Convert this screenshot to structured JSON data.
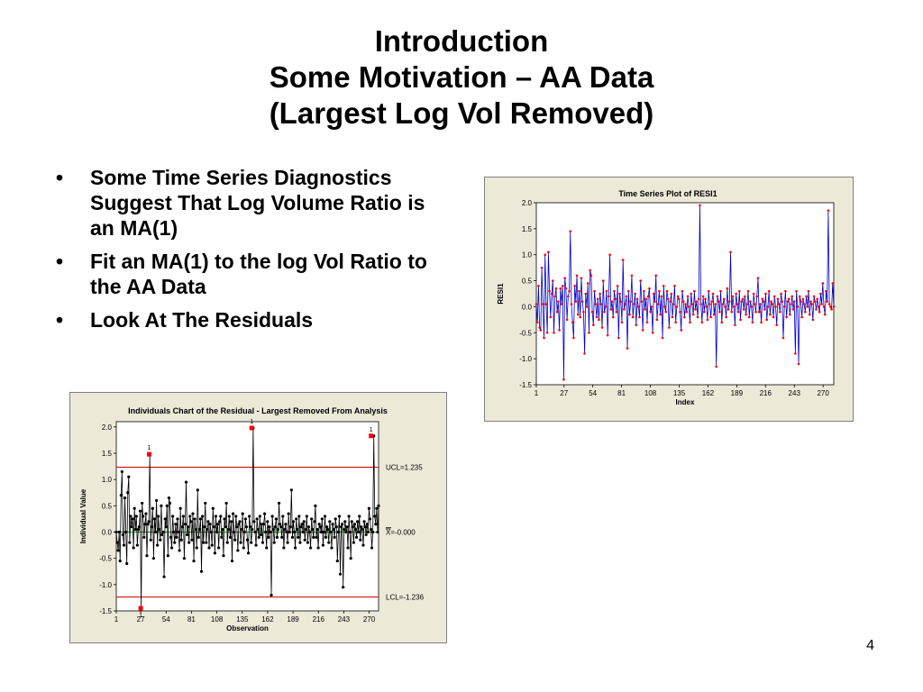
{
  "slide": {
    "title_lines": [
      "Introduction",
      "Some Motivation – AA Data",
      "(Largest Log Vol Removed)"
    ],
    "bullets": [
      "Some Time Series Diagnostics Suggest That Log Volume Ratio is an MA(1)",
      "Fit an MA(1) to the log Vol Ratio to the AA Data",
      "Look At The Residuals"
    ],
    "bullet_symbol": "•",
    "page_number": "4"
  },
  "chart_data": [
    {
      "type": "line",
      "title": "Time Series Plot of RESI1",
      "xlabel": "Index",
      "ylabel": "RESI1",
      "x_ticks": [
        "1",
        "27",
        "54",
        "81",
        "108",
        "135",
        "162",
        "189",
        "216",
        "243",
        "270"
      ],
      "y_ticks": [
        "2.0",
        "1.5",
        "1.0",
        "0.5",
        "0.0",
        "-0.5",
        "-1.0",
        "-1.5"
      ],
      "xlim": [
        1,
        280
      ],
      "ylim": [
        -1.5,
        2.0
      ],
      "line_color": "#0000cc",
      "marker_color": "#ff0000",
      "note": "",
      "series": [
        {
          "values": [
            0.05,
            -0.3,
            0.4,
            -0.4,
            -0.45,
            0.75,
            0.05,
            -0.6,
            1.0,
            0.05,
            -0.5,
            1.05,
            0.3,
            -0.2,
            0.25,
            0.5,
            -0.5,
            0.2,
            0.35,
            -0.1,
            0.1,
            -0.45,
            0.35,
            0.05,
            0.4,
            -1.4,
            0.55,
            0.35,
            -0.25,
            0.2,
            0.3,
            1.45,
            0.05,
            -0.3,
            -0.6,
            0.4,
            0.1,
            0.6,
            -0.15,
            0.3,
            -0.2,
            0.55,
            0.1,
            -0.1,
            -0.9,
            0.25,
            0.0,
            0.45,
            -0.5,
            0.7,
            0.6,
            -0.1,
            -0.35,
            0.3,
            0.05,
            -0.2,
            0.15,
            -0.25,
            0.25,
            0.05,
            -0.4,
            0.5,
            -0.1,
            0.0,
            0.3,
            -0.55,
            0.2,
            1.0,
            -0.05,
            0.1,
            -0.2,
            0.3,
            0.15,
            -0.1,
            0.4,
            -0.6,
            0.25,
            0.1,
            -0.3,
            0.9,
            -0.05,
            0.05,
            0.2,
            -0.8,
            0.3,
            -0.15,
            0.1,
            0.6,
            -0.2,
            0.05,
            0.25,
            -0.35,
            0.15,
            0.0,
            -0.2,
            0.5,
            0.1,
            -0.45,
            0.3,
            -0.05,
            0.15,
            -0.3,
            0.2,
            0.35,
            -0.1,
            0.0,
            -0.5,
            0.25,
            0.1,
            0.6,
            -0.25,
            0.05,
            0.3,
            -0.15,
            0.2,
            -0.6,
            0.4,
            0.0,
            -0.1,
            0.3,
            0.15,
            -0.4,
            0.1,
            0.25,
            -0.2,
            0.05,
            0.4,
            -0.3,
            0.0,
            0.2,
            0.15,
            -0.1,
            -0.45,
            0.3,
            0.1,
            -0.2,
            0.05,
            -0.1,
            0.2,
            0.0,
            -0.3,
            0.25,
            0.05,
            -0.15,
            0.3,
            -0.05,
            0.1,
            -0.2,
            0.15,
            1.95,
            0.05,
            -0.3,
            0.2,
            -0.1,
            0.15,
            0.0,
            -0.25,
            0.3,
            0.05,
            -0.2,
            0.1,
            0.25,
            -0.15,
            0.05,
            -1.15,
            0.2,
            0.1,
            -0.1,
            0.3,
            -0.3,
            0.05,
            0.15,
            0.0,
            -0.2,
            0.35,
            -0.05,
            0.1,
            1.05,
            -0.1,
            0.2,
            0.0,
            -0.35,
            0.25,
            0.05,
            -0.1,
            0.3,
            -0.25,
            0.1,
            0.15,
            -0.05,
            0.2,
            -0.15,
            0.05,
            0.3,
            -0.2,
            0.1,
            0.0,
            -0.3,
            0.25,
            0.05,
            -0.1,
            0.2,
            0.55,
            -0.1,
            0.05,
            -0.3,
            0.15,
            0.1,
            -0.05,
            0.25,
            -0.25,
            0.0,
            0.3,
            -0.15,
            0.1,
            0.05,
            -0.2,
            0.2,
            0.0,
            -0.35,
            0.15,
            0.05,
            -0.1,
            0.25,
            0.1,
            -0.6,
            0.0,
            0.3,
            -0.2,
            0.1,
            0.15,
            -0.15,
            0.05,
            0.2,
            -0.05,
            0.1,
            -0.9,
            0.3,
            0.0,
            -1.1,
            0.2,
            0.1,
            -0.2,
            0.15,
            0.05,
            -0.1,
            0.2,
            0.0,
            0.3,
            -0.15,
            0.1,
            0.05,
            -0.25,
            0.2,
            0.1,
            -0.05,
            0.15,
            0.0,
            -0.1,
            0.25,
            0.05,
            0.45,
            0.0,
            -0.15,
            0.3,
            0.1,
            1.85,
            0.05,
            0.0,
            -0.05,
            0.45,
            0.0
          ]
        }
      ]
    },
    {
      "type": "line",
      "title": "Individuals Chart of the Residual - Largest Removed From Analysis",
      "xlabel": "Observation",
      "ylabel": "Individual Value",
      "x_ticks": [
        "1",
        "27",
        "54",
        "81",
        "108",
        "135",
        "162",
        "189",
        "216",
        "243",
        "270"
      ],
      "y_ticks": [
        "2.0",
        "1.5",
        "1.0",
        "0.5",
        "0.0",
        "-0.5",
        "-1.0",
        "-1.5"
      ],
      "xlim": [
        1,
        280
      ],
      "ylim": [
        -1.5,
        2.1
      ],
      "ucl": 1.235,
      "center": 0.0,
      "lcl": -1.236,
      "ucl_label": "UCL=1.235",
      "center_label_prefix": "X",
      "center_label_suffix": "=-0.000",
      "lcl_label": "LCL=-1.236",
      "line_color": "#000000",
      "marker_color": "#000000",
      "limit_line_color": "#cc0000",
      "center_line_color": "#00aa00",
      "flag_color": "#ff0000",
      "flag_label": "1",
      "flagged_points": [
        {
          "x": 27,
          "y": -1.45
        },
        {
          "x": 36,
          "y": 1.48
        },
        {
          "x": 145,
          "y": 1.98
        },
        {
          "x": 272,
          "y": 1.83
        }
      ],
      "series": [
        {
          "values": [
            0.0,
            -0.2,
            -0.35,
            0.0,
            -0.55,
            0.7,
            1.15,
            -0.05,
            -0.25,
            0.65,
            0.0,
            -0.6,
            0.75,
            1.05,
            -0.2,
            0.3,
            0.1,
            0.25,
            -0.3,
            0.45,
            0.05,
            0.3,
            -0.25,
            0.05,
            0.1,
            0.4,
            -1.45,
            0.55,
            0.3,
            -0.1,
            0.15,
            0.35,
            -0.45,
            0.15,
            0.2,
            1.48,
            -0.15,
            0.1,
            0.45,
            -0.5,
            0.25,
            0.0,
            0.6,
            -0.25,
            0.3,
            0.05,
            -0.15,
            0.5,
            -0.05,
            0.0,
            -0.85,
            0.25,
            0.1,
            0.5,
            -0.45,
            0.65,
            0.55,
            -0.1,
            -0.3,
            0.3,
            0.0,
            -0.2,
            0.15,
            -0.1,
            0.25,
            0.0,
            -0.35,
            0.45,
            -0.15,
            0.1,
            0.3,
            -0.5,
            0.15,
            0.95,
            -0.05,
            0.1,
            -0.2,
            0.3,
            0.2,
            -0.15,
            0.35,
            -0.55,
            0.25,
            0.05,
            -0.3,
            0.8,
            -0.1,
            0.05,
            0.25,
            -0.75,
            0.3,
            -0.2,
            0.1,
            0.55,
            -0.2,
            0.05,
            0.2,
            -0.3,
            0.15,
            0.0,
            -0.25,
            0.45,
            0.1,
            -0.4,
            0.3,
            0.0,
            0.15,
            -0.3,
            0.2,
            0.3,
            -0.1,
            0.05,
            -0.45,
            0.25,
            0.1,
            0.55,
            -0.2,
            0.05,
            0.3,
            -0.1,
            0.2,
            -0.55,
            0.35,
            0.0,
            -0.15,
            0.3,
            0.1,
            -0.35,
            0.15,
            0.2,
            -0.2,
            0.05,
            0.35,
            -0.3,
            0.0,
            0.25,
            0.1,
            -0.15,
            -0.4,
            0.3,
            0.1,
            -0.2,
            0.05,
            1.98,
            0.2,
            0.0,
            -0.25,
            0.25,
            0.05,
            -0.1,
            0.3,
            -0.05,
            0.15,
            -0.2,
            0.15,
            0.35,
            0.0,
            -0.3,
            0.2,
            -0.1,
            0.1,
            0.0,
            -1.2,
            0.3,
            0.05,
            -0.2,
            0.1,
            0.25,
            -0.1,
            0.05,
            0.55,
            0.15,
            0.1,
            -0.1,
            0.3,
            -0.3,
            0.05,
            0.15,
            0.0,
            -0.2,
            0.35,
            0.0,
            0.1,
            0.8,
            -0.1,
            0.2,
            0.0,
            -0.3,
            0.25,
            0.05,
            -0.1,
            0.3,
            -0.2,
            0.1,
            0.15,
            0.0,
            0.2,
            -0.15,
            0.05,
            0.3,
            -0.2,
            0.1,
            0.0,
            -0.3,
            0.25,
            0.05,
            -0.1,
            0.2,
            0.5,
            -0.1,
            0.05,
            -0.3,
            0.15,
            0.1,
            0.0,
            0.25,
            -0.25,
            0.0,
            0.3,
            -0.1,
            0.1,
            0.05,
            -0.2,
            0.2,
            0.0,
            -0.3,
            0.15,
            0.05,
            -0.1,
            0.25,
            0.1,
            -0.55,
            0.0,
            0.3,
            -0.8,
            0.1,
            0.15,
            -1.05,
            0.05,
            0.2,
            0.0,
            0.1,
            -0.3,
            0.3,
            0.0,
            -0.5,
            0.2,
            0.1,
            -0.2,
            0.15,
            0.05,
            -0.1,
            0.2,
            0.0,
            0.3,
            -0.15,
            0.1,
            0.05,
            -0.25,
            0.2,
            0.1,
            -0.05,
            0.15,
            0.0,
            0.45,
            0.25,
            0.05,
            -0.3,
            0.0,
            1.83,
            0.3,
            0.15,
            0.45,
            0.0,
            0.5
          ]
        }
      ]
    }
  ]
}
